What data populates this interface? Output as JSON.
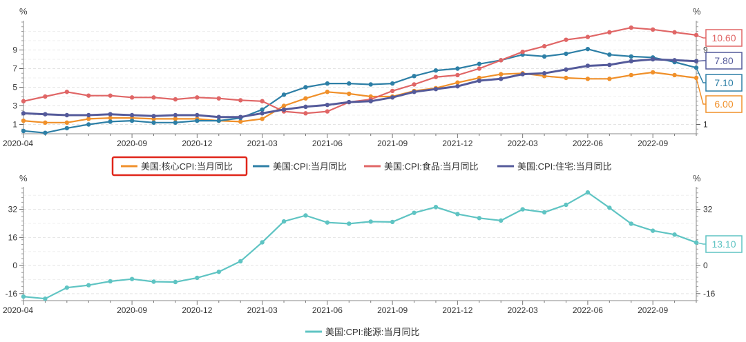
{
  "chart_data": [
    {
      "type": "line",
      "unit_left": "%",
      "unit_right": "%",
      "ylim": [
        0,
        12
      ],
      "y_ticks": [
        1,
        3,
        5,
        7,
        9
      ],
      "right_ticks": [
        1,
        9
      ],
      "x_ticks": [
        "2020-04",
        "2020-09",
        "2020-12",
        "2021-03",
        "2021-06",
        "2021-09",
        "2021-12",
        "2022-03",
        "2022-06",
        "2022-09"
      ],
      "categories": [
        "2020-04",
        "2020-05",
        "2020-06",
        "2020-07",
        "2020-08",
        "2020-09",
        "2020-10",
        "2020-11",
        "2020-12",
        "2021-01",
        "2021-02",
        "2021-03",
        "2021-04",
        "2021-05",
        "2021-06",
        "2021-07",
        "2021-08",
        "2021-09",
        "2021-10",
        "2021-11",
        "2021-12",
        "2022-01",
        "2022-02",
        "2022-03",
        "2022-04",
        "2022-05",
        "2022-06",
        "2022-07",
        "2022-08",
        "2022-09",
        "2022-10",
        "2022-11"
      ],
      "series": [
        {
          "name": "美国:核心CPI:当月同比",
          "color": "#f0902a",
          "highlighted": true,
          "values": [
            1.4,
            1.2,
            1.2,
            1.6,
            1.7,
            1.7,
            1.6,
            1.6,
            1.6,
            1.4,
            1.3,
            1.6,
            3.0,
            3.8,
            4.5,
            4.3,
            4.0,
            4.0,
            4.6,
            4.9,
            5.5,
            6.0,
            6.4,
            6.5,
            6.2,
            6.0,
            5.9,
            5.9,
            6.3,
            6.6,
            6.3,
            6.0
          ]
        },
        {
          "name": "美国:CPI:当月同比",
          "color": "#2d7fa6",
          "values": [
            0.3,
            0.1,
            0.6,
            1.0,
            1.3,
            1.4,
            1.2,
            1.2,
            1.4,
            1.4,
            1.7,
            2.6,
            4.2,
            5.0,
            5.4,
            5.4,
            5.3,
            5.4,
            6.2,
            6.8,
            7.0,
            7.5,
            7.9,
            8.5,
            8.3,
            8.6,
            9.1,
            8.5,
            8.3,
            8.2,
            7.7,
            7.1
          ]
        },
        {
          "name": "美国:CPI:食品:当月同比",
          "color": "#e06666",
          "values": [
            3.5,
            4.0,
            4.5,
            4.1,
            4.1,
            3.9,
            3.9,
            3.7,
            3.9,
            3.8,
            3.6,
            3.5,
            2.4,
            2.2,
            2.4,
            3.4,
            3.7,
            4.6,
            5.3,
            6.1,
            6.3,
            7.0,
            7.9,
            8.8,
            9.4,
            10.1,
            10.4,
            10.9,
            11.4,
            11.2,
            10.9,
            10.6
          ]
        },
        {
          "name": "美国:CPI:住宅:当月同比",
          "color": "#545a9a",
          "values": [
            2.2,
            2.1,
            2.0,
            2.0,
            2.1,
            2.0,
            1.9,
            2.0,
            2.0,
            1.8,
            1.8,
            2.2,
            2.6,
            2.9,
            3.1,
            3.4,
            3.5,
            3.9,
            4.5,
            4.8,
            5.1,
            5.7,
            5.9,
            6.4,
            6.5,
            6.9,
            7.3,
            7.4,
            7.8,
            8.0,
            7.9,
            7.8
          ]
        }
      ],
      "end_labels": [
        {
          "text": "10.60",
          "color": "#e06666"
        },
        {
          "text": "7.80",
          "color": "#545a9a"
        },
        {
          "text": "7.10",
          "color": "#2d7fa6"
        },
        {
          "text": "6.00",
          "color": "#f0902a"
        }
      ]
    },
    {
      "type": "line",
      "unit_left": "%",
      "unit_right": "%",
      "ylim": [
        -20,
        44
      ],
      "y_ticks": [
        -16,
        0,
        16,
        32
      ],
      "right_ticks": [
        -16,
        0,
        32
      ],
      "x_ticks": [
        "2020-04",
        "2020-09",
        "2020-12",
        "2021-03",
        "2021-06",
        "2021-09",
        "2021-12",
        "2022-03",
        "2022-06",
        "2022-09"
      ],
      "categories": [
        "2020-04",
        "2020-05",
        "2020-06",
        "2020-07",
        "2020-08",
        "2020-09",
        "2020-10",
        "2020-11",
        "2020-12",
        "2021-01",
        "2021-02",
        "2021-03",
        "2021-04",
        "2021-05",
        "2021-06",
        "2021-07",
        "2021-08",
        "2021-09",
        "2021-10",
        "2021-11",
        "2021-12",
        "2022-01",
        "2022-02",
        "2022-03",
        "2022-04",
        "2022-05",
        "2022-06",
        "2022-07",
        "2022-08",
        "2022-09",
        "2022-10",
        "2022-11"
      ],
      "series": [
        {
          "name": "美国:CPI:能源:当月同比",
          "color": "#5fc4c3",
          "values": [
            -17.7,
            -18.9,
            -12.6,
            -11.2,
            -9.0,
            -7.7,
            -9.2,
            -9.4,
            -7.0,
            -3.6,
            2.4,
            13.2,
            25.1,
            28.5,
            24.5,
            23.8,
            25.0,
            24.8,
            30.0,
            33.3,
            29.3,
            27.0,
            25.6,
            32.0,
            30.3,
            34.6,
            41.6,
            32.9,
            23.8,
            19.8,
            17.6,
            13.1
          ]
        }
      ],
      "end_labels": [
        {
          "text": "13.10",
          "color": "#5fc4c3"
        }
      ]
    }
  ]
}
